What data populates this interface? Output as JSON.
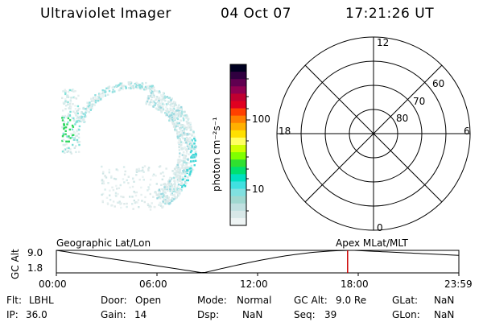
{
  "header": {
    "instrument": "Ultraviolet Imager",
    "date": "04 Oct 07",
    "time": "17:21:26 UT"
  },
  "colorbar": {
    "label": "photon cm⁻²s⁻¹",
    "scale": "log",
    "ticks": [
      "100",
      "10"
    ],
    "colors": [
      "#000020",
      "#300040",
      "#600050",
      "#900050",
      "#c00030",
      "#e00020",
      "#ff4000",
      "#ff8000",
      "#ffb000",
      "#ffe000",
      "#ffff60",
      "#d0ff00",
      "#80ff00",
      "#30e030",
      "#00e070",
      "#00e0c0",
      "#40e0e0",
      "#80e0e0",
      "#a0d8d0",
      "#c0e0e0",
      "#d8e8e8",
      "#eef4f4"
    ]
  },
  "polar": {
    "mlt_labels": [
      "12",
      "18",
      "6",
      "0"
    ],
    "lat_labels": [
      "60",
      "70",
      "80"
    ]
  },
  "timeline": {
    "left_label": "Geographic Lat/Lon",
    "right_label": "Apex MLat/MLT",
    "y_axis_label": "GC Alt",
    "y_ticks": [
      "9.0",
      "1.8"
    ],
    "x_ticks": [
      "00:00",
      "06:00",
      "12:00",
      "18:00",
      "23:59"
    ],
    "marker_time": "17:21",
    "marker_color": "#cc0000"
  },
  "status": {
    "flt_label": "Flt:",
    "flt_value": "LBHL",
    "ip_label": "IP:",
    "ip_value": "36.0",
    "door_label": "Door:",
    "door_value": "Open",
    "gain_label": "Gain:",
    "gain_value": "14",
    "mode_label": "Mode:",
    "mode_value": "Normal",
    "dsp_label": "Dsp:",
    "dsp_value": "NaN",
    "gcalt_label": "GC Alt:",
    "gcalt_value": "9.0 Re",
    "seq_label": "Seq:",
    "seq_value": "39",
    "glat_label": "GLat:",
    "glat_value": "NaN",
    "glon_label": "GLon:",
    "glon_value": "NaN"
  }
}
